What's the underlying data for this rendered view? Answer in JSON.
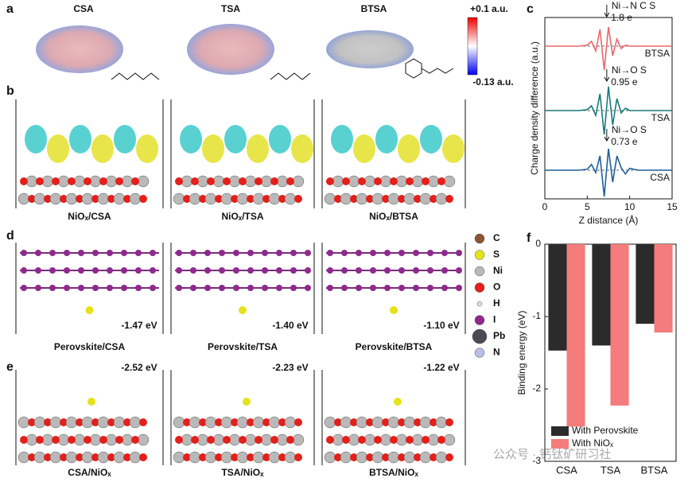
{
  "panel_a": {
    "label": "a",
    "molecules": [
      "CSA",
      "TSA",
      "BTSA"
    ],
    "scale_max": "+0.1 a.u.",
    "scale_min": "-0.13 a.u."
  },
  "panel_b": {
    "label": "b",
    "captions": [
      "NiOₓ/CSA",
      "NiOₓ/TSA",
      "NiOₓ/BTSA"
    ]
  },
  "panel_d": {
    "label": "d",
    "energies": [
      "-1.47 eV",
      "-1.40 eV",
      "-1.10 eV"
    ],
    "captions": [
      "Perovskite/CSA",
      "Perovskite/TSA",
      "Perovskite/BTSA"
    ]
  },
  "panel_e": {
    "label": "e",
    "energies": [
      "-2.52 eV",
      "-2.23 eV",
      "-1.22 eV"
    ],
    "captions": [
      "CSA/NiOₓ",
      "TSA/NiOₓ",
      "BTSA/NiOₓ"
    ]
  },
  "legend_atoms": [
    {
      "symbol": "C",
      "color": "#8a5535"
    },
    {
      "symbol": "S",
      "color": "#e6e21a"
    },
    {
      "symbol": "Ni",
      "color": "#b9b9b9"
    },
    {
      "symbol": "O",
      "color": "#e3201b"
    },
    {
      "symbol": "H",
      "color": "#f3d6d6"
    },
    {
      "symbol": "I",
      "color": "#8e2a8e"
    },
    {
      "symbol": "Pb",
      "color": "#4a4a52"
    },
    {
      "symbol": "N",
      "color": "#b8bfe6"
    }
  ],
  "watermark": "公众号 · 钙钛矿研习社",
  "chart_data": [
    {
      "type": "line",
      "label": "c",
      "xlabel": "Z distance (Å)",
      "ylabel": "Charge density difference (a.u.)",
      "x": [
        0,
        2,
        4,
        5,
        5.5,
        6,
        6.5,
        7,
        7.5,
        8,
        8.5,
        9,
        9.5,
        10,
        11,
        12,
        13,
        15
      ],
      "xlim": [
        0,
        15
      ],
      "xticks": [
        0,
        5,
        10,
        15
      ],
      "ylim": [
        -0.6,
        3.2
      ],
      "series": [
        {
          "name": "CSA",
          "color": "#1f5f9a",
          "values": [
            0,
            0,
            0,
            0.02,
            0.12,
            -0.05,
            0.3,
            -0.55,
            0.45,
            -0.25,
            0.3,
            0.05,
            -0.08,
            0.04,
            0,
            0,
            0,
            0
          ]
        },
        {
          "name": "TSA",
          "color": "#1a7a7a",
          "values": [
            1.25,
            1.25,
            1.25,
            1.27,
            1.35,
            1.15,
            1.6,
            0.75,
            1.75,
            0.95,
            1.5,
            1.2,
            1.3,
            1.25,
            1.25,
            1.25,
            1.25,
            1.25
          ]
        },
        {
          "name": "BTSA",
          "color": "#e8686a",
          "values": [
            2.6,
            2.6,
            2.6,
            2.62,
            2.7,
            2.5,
            2.95,
            2.1,
            3.0,
            2.4,
            2.75,
            2.55,
            2.62,
            2.6,
            2.6,
            2.6,
            2.6,
            2.6
          ]
        }
      ],
      "annotations": [
        {
          "text": "Ni→N C S",
          "value": "1.8 e"
        },
        {
          "text": "Ni→O S",
          "value": "0.95 e"
        },
        {
          "text": "Ni→O S",
          "value": "0.73 e"
        }
      ]
    },
    {
      "type": "bar",
      "label": "f",
      "ylabel": "Binding energy (eV)",
      "categories": [
        "CSA",
        "TSA",
        "BTSA"
      ],
      "ylim": [
        -3,
        0
      ],
      "yticks": [
        -3,
        -2,
        -1,
        0
      ],
      "series": [
        {
          "name": "With Perovskite",
          "color": "#2b2b2b",
          "values": [
            -1.47,
            -1.4,
            -1.1
          ]
        },
        {
          "name": "With NiOₓ",
          "color": "#f47c7c",
          "values": [
            -2.52,
            -2.23,
            -1.22
          ]
        }
      ],
      "legend": "lower left"
    }
  ]
}
